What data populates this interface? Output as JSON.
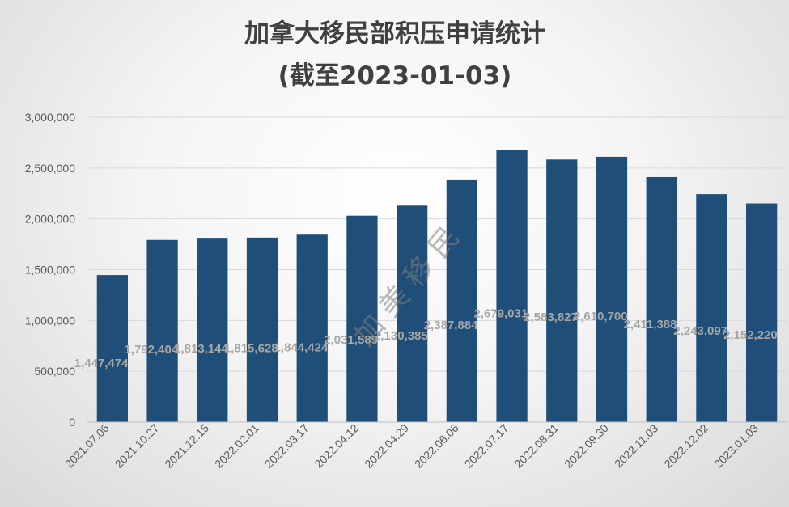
{
  "chart_data": {
    "type": "bar",
    "title": "加拿大移民部积压申请统计",
    "subtitle": "(截至2023-01-03)",
    "xlabel": "",
    "ylabel": "",
    "ylim": [
      0,
      3000000
    ],
    "yticks": [
      0,
      500000,
      1000000,
      1500000,
      2000000,
      2500000,
      3000000
    ],
    "ytick_labels": [
      "0",
      "500,000",
      "1,000,000",
      "1,500,000",
      "2,000,000",
      "2,500,000",
      "3,000,000"
    ],
    "grid": true,
    "legend": "none",
    "bar_color": "#1F4E79",
    "categories": [
      "2021.07.06",
      "2021.10.27",
      "2021.12.15",
      "2022.02.01",
      "2022.03.17",
      "2022.04.12",
      "2022.04.29",
      "2022.06.06",
      "2022.07.17",
      "2022.08.31",
      "2022.09.30",
      "2022.11.03",
      "2022.12.02",
      "2023.01.03"
    ],
    "values": [
      1447474,
      1792404,
      1813144,
      1815628,
      1844424,
      2031589,
      2130385,
      2387884,
      2679031,
      2583827,
      2610700,
      2411388,
      2243097,
      2152220
    ],
    "data_labels": [
      "1,447,474",
      "1,792,404",
      "1,813,144",
      "1,815,628",
      "1,844,424",
      "2,031,589",
      "2,130,385",
      "2,387,884",
      "2,679,031",
      "2,583,827",
      "2,610,700",
      "2,411,388",
      "2,243,097",
      "2,152,220"
    ],
    "watermark": "加 美 移 民"
  }
}
